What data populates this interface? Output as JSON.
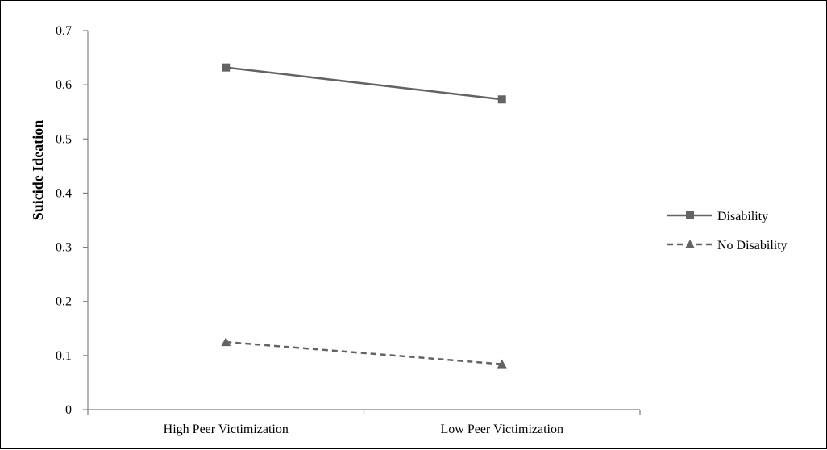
{
  "chart_data": {
    "type": "line",
    "title": "",
    "xlabel": "",
    "ylabel": "Suicide Ideation",
    "categories": [
      "High Peer Victimization",
      "Low Peer Victimization"
    ],
    "series": [
      {
        "name": "Disability",
        "values": [
          0.632,
          0.573
        ],
        "color": "#636363",
        "dash": "solid",
        "marker": "square"
      },
      {
        "name": "No Disability",
        "values": [
          0.125,
          0.084
        ],
        "color": "#636363",
        "dash": "dashed",
        "marker": "triangle"
      }
    ],
    "ylim": [
      0,
      0.7
    ],
    "yticks": [
      0,
      0.1,
      0.2,
      0.3,
      0.4,
      0.5,
      0.6,
      0.7
    ],
    "ytick_labels": [
      "0",
      "0.1",
      "0.2",
      "0.3",
      "0.4",
      "0.5",
      "0.6",
      "0.7"
    ],
    "grid": false,
    "legend_position": "right"
  }
}
